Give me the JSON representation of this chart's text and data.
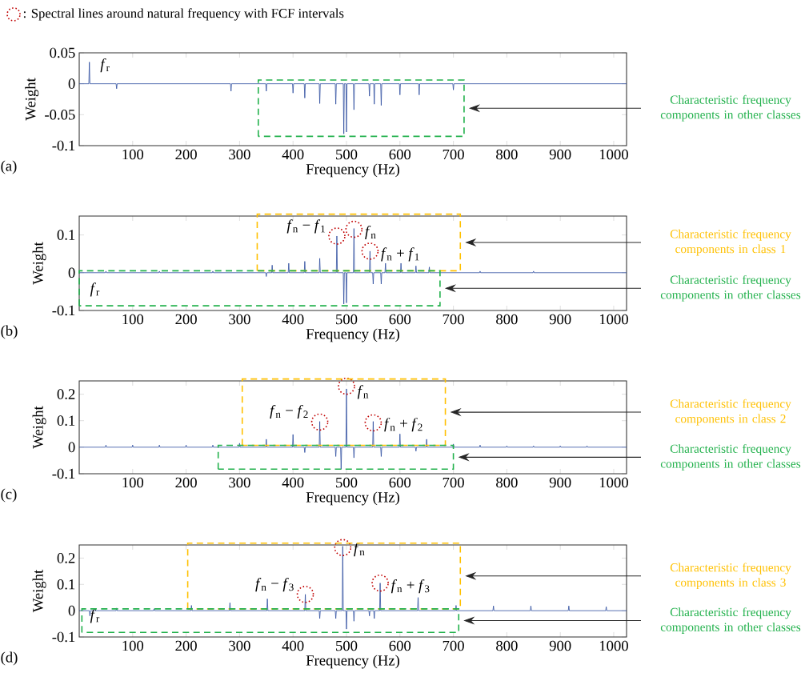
{
  "chart_data": [
    {
      "type": "line",
      "xlabel": "Frequency (Hz)",
      "ylabel": "Weight",
      "xlim": [
        0,
        1024
      ],
      "ylim": [
        -0.1,
        0.05
      ],
      "xticks": [
        100,
        200,
        300,
        400,
        500,
        600,
        700,
        800,
        900,
        1000
      ],
      "yticks": [
        -0.1,
        -0.05,
        0,
        0.05
      ],
      "series": [
        {
          "color": "#2e4ea0",
          "x": [
            0,
            18,
            19,
            20,
            69,
            70,
            71,
            283,
            284,
            285,
            349,
            350,
            351,
            399,
            400,
            401,
            421,
            422,
            423,
            449,
            450,
            451,
            479,
            480,
            481,
            494,
            495,
            496,
            499,
            500,
            501,
            513,
            514,
            515,
            542,
            543,
            544,
            551,
            552,
            553,
            564,
            565,
            566,
            599,
            600,
            601,
            635,
            636,
            637,
            699,
            700,
            701,
            1024
          ],
          "values": [
            0,
            0,
            0.035,
            0,
            0,
            -0.008,
            0,
            0,
            -0.012,
            0,
            0,
            -0.012,
            0,
            0,
            -0.015,
            0,
            0,
            -0.023,
            0,
            0,
            -0.032,
            0,
            0,
            -0.033,
            0,
            0,
            -0.081,
            0,
            0,
            -0.078,
            0,
            0,
            -0.042,
            0,
            0,
            -0.02,
            0,
            0,
            -0.033,
            0,
            0,
            -0.035,
            0,
            0,
            -0.018,
            0,
            0,
            -0.018,
            0,
            0,
            -0.01,
            0,
            0
          ]
        }
      ],
      "annotations": [
        {
          "text": "*f*$_{r}$",
          "x": 19,
          "y": 0.035
        },
        "Characteristic frequency components in other classes",
        "(a)"
      ]
    },
    {
      "type": "line",
      "xlabel": "Frequency (Hz)",
      "ylabel": "Weight",
      "xlim": [
        0,
        1024
      ],
      "ylim": [
        -0.1,
        0.15
      ],
      "xticks": [
        100,
        200,
        300,
        400,
        500,
        600,
        700,
        800,
        900,
        1000
      ],
      "yticks": [
        -0.1,
        0,
        0.1
      ],
      "legend": "top left",
      "series": [
        {
          "color": "#2e4ea0",
          "x": [
            0,
            49,
            50,
            51,
            149,
            150,
            151,
            249,
            250,
            251,
            349,
            350,
            351,
            360,
            361,
            362,
            391,
            392,
            393,
            421,
            422,
            423,
            449,
            450,
            451,
            481,
            482,
            483,
            494,
            495,
            496,
            499,
            500,
            501,
            513,
            514,
            515,
            543,
            544,
            545,
            549,
            550,
            551,
            564,
            565,
            566,
            572,
            573,
            574,
            601,
            602,
            603,
            629,
            630,
            631,
            654,
            655,
            656,
            749,
            750,
            751,
            849,
            850,
            851,
            1024
          ],
          "values": [
            0,
            0,
            0.004,
            0,
            0,
            0.004,
            0,
            0,
            0.004,
            0,
            0,
            -0.01,
            0,
            0,
            0.02,
            0,
            0,
            0.025,
            0,
            0,
            0.03,
            0,
            0,
            0.038,
            0,
            0,
            0.097,
            0,
            0,
            -0.083,
            0,
            0,
            -0.08,
            0,
            0,
            0.117,
            0,
            0,
            0.057,
            0,
            0,
            -0.03,
            0,
            0,
            -0.03,
            0,
            0,
            0.025,
            0,
            0,
            0.025,
            0,
            0,
            0.018,
            0,
            0,
            0.015,
            0,
            0,
            0.004,
            0,
            0,
            0.004,
            0,
            0
          ]
        },
        {
          "type": "scatter",
          "name": ": Spectral lines around natural frequency with FCF intervals",
          "color": "#c00000",
          "marker": "circle",
          "line_style": "dotted",
          "x": [
            482,
            514,
            544
          ],
          "values": [
            0.097,
            0.115,
            0.057
          ]
        }
      ],
      "annotations": [
        "Characteristic frequency components in class 1",
        "Characteristic frequency components in other classes",
        {
          "text": "*f*$_{n}$ − *f*$_{1}$",
          "x": 482,
          "y": 0.097
        },
        {
          "text": "*f*$_{n}$",
          "x": 514,
          "y": 0.115
        },
        {
          "text": "*f*$_{n}$ + *f*$_{1}$",
          "x": 544,
          "y": 0.057
        },
        "*f*$_{r}$",
        "(b)"
      ]
    },
    {
      "type": "line",
      "xlabel": "Frequency (Hz)",
      "ylabel": "Weight",
      "xlim": [
        0,
        1024
      ],
      "ylim": [
        -0.1,
        0.25
      ],
      "xticks": [
        100,
        200,
        300,
        400,
        500,
        600,
        700,
        800,
        900,
        1000
      ],
      "yticks": [
        -0.1,
        0,
        0.1,
        0.2
      ],
      "series": [
        {
          "color": "#2e4ea0",
          "x": [
            0,
            49,
            50,
            51,
            99,
            100,
            101,
            149,
            150,
            151,
            199,
            200,
            201,
            249,
            250,
            251,
            299,
            300,
            301,
            349,
            350,
            351,
            399,
            400,
            401,
            421,
            422,
            423,
            449,
            450,
            451,
            479,
            480,
            481,
            489,
            490,
            491,
            499,
            500,
            501,
            513,
            514,
            515,
            549,
            550,
            551,
            564,
            565,
            566,
            599,
            600,
            601,
            629,
            630,
            631,
            649,
            650,
            651,
            699,
            700,
            701,
            749,
            750,
            751,
            799,
            800,
            801,
            849,
            850,
            851,
            899,
            900,
            901,
            949,
            950,
            951,
            1024
          ],
          "values": [
            0,
            0,
            0.008,
            0,
            0,
            0.008,
            0,
            0,
            0.008,
            0,
            0,
            0.008,
            0,
            0,
            0.008,
            0,
            0,
            0.015,
            0,
            0,
            0.03,
            0,
            0,
            0.048,
            0,
            0,
            -0.02,
            0,
            0,
            0.097,
            0,
            0,
            -0.035,
            0,
            0,
            -0.083,
            0,
            0,
            0.22,
            0,
            0,
            -0.04,
            0,
            0,
            0.097,
            0,
            0,
            -0.035,
            0,
            0,
            0.05,
            0,
            0,
            -0.015,
            0,
            0,
            0.03,
            0,
            0,
            0.012,
            0,
            0,
            0.008,
            0,
            0,
            0.005,
            0,
            0,
            0.005,
            0,
            0,
            0.005,
            0,
            0,
            0.005,
            0,
            0
          ]
        },
        {
          "type": "scatter",
          "color": "#c00000",
          "marker": "circle",
          "line_style": "dotted",
          "x": [
            450,
            500,
            550
          ],
          "values": [
            0.095,
            0.23,
            0.092
          ]
        }
      ],
      "annotations": [
        "Characteristic frequency components in class 2",
        "Characteristic frequency components in other classes",
        {
          "text": "*f*$_{n}$ − *f*$_{2}$",
          "x": 450,
          "y": 0.097
        },
        {
          "text": "*f*$_{n}$",
          "x": 500,
          "y": 0.22
        },
        {
          "text": "*f*$_{n}$ + *f*$_{2}$",
          "x": 550,
          "y": 0.097
        },
        "(c)"
      ]
    },
    {
      "type": "line",
      "xlabel": "Frequency (Hz)",
      "ylabel": "Weight",
      "xlim": [
        0,
        1024
      ],
      "ylim": [
        -0.1,
        0.25
      ],
      "xticks": [
        100,
        200,
        300,
        400,
        500,
        600,
        700,
        800,
        900,
        1000
      ],
      "yticks": [
        -0.1,
        0,
        0.1,
        0.2
      ],
      "series": [
        {
          "color": "#2e4ea0",
          "x": [
            0,
            19,
            20,
            21,
            69,
            70,
            71,
            139,
            140,
            141,
            209,
            210,
            211,
            281,
            282,
            283,
            351,
            352,
            353,
            422,
            423,
            424,
            449,
            450,
            451,
            479,
            480,
            481,
            492,
            493,
            494,
            499,
            500,
            501,
            513,
            514,
            515,
            542,
            543,
            544,
            551,
            552,
            553,
            562,
            563,
            564,
            633,
            634,
            635,
            704,
            705,
            706,
            774,
            775,
            776,
            844,
            845,
            846,
            915,
            916,
            917,
            985,
            986,
            987,
            1024
          ],
          "values": [
            0,
            0,
            -0.02,
            0,
            0,
            0.01,
            0,
            0,
            0.007,
            0,
            0,
            0.02,
            0,
            0,
            0.03,
            0,
            0,
            0.045,
            0,
            0,
            0.062,
            0,
            0,
            -0.03,
            0,
            0,
            -0.03,
            0,
            0,
            0.245,
            0,
            0,
            -0.07,
            0,
            0,
            -0.04,
            0,
            0,
            -0.02,
            0,
            0,
            -0.03,
            0,
            0,
            0.105,
            0,
            0,
            0.05,
            0,
            0,
            0.02,
            0,
            0,
            0.018,
            0,
            0,
            0.018,
            0,
            0,
            0.018,
            0,
            0,
            0.015,
            0,
            0
          ]
        },
        {
          "type": "scatter",
          "color": "#c00000",
          "marker": "circle",
          "line_style": "dotted",
          "x": [
            423,
            493,
            563
          ],
          "values": [
            0.062,
            0.24,
            0.105
          ]
        }
      ],
      "annotations": [
        "Characteristic frequency components in class 3",
        "Characteristic frequency components in other classes",
        {
          "text": "*f*$_{n}$ − *f*$_{3}$",
          "x": 423,
          "y": 0.062
        },
        {
          "text": "*f*$_{n}$",
          "x": 493,
          "y": 0.245
        },
        {
          "text": "*f*$_{n}$ + *f*$_{3}$",
          "x": 563,
          "y": 0.105
        },
        "*f*$_{r}$",
        "(d)"
      ]
    }
  ]
}
